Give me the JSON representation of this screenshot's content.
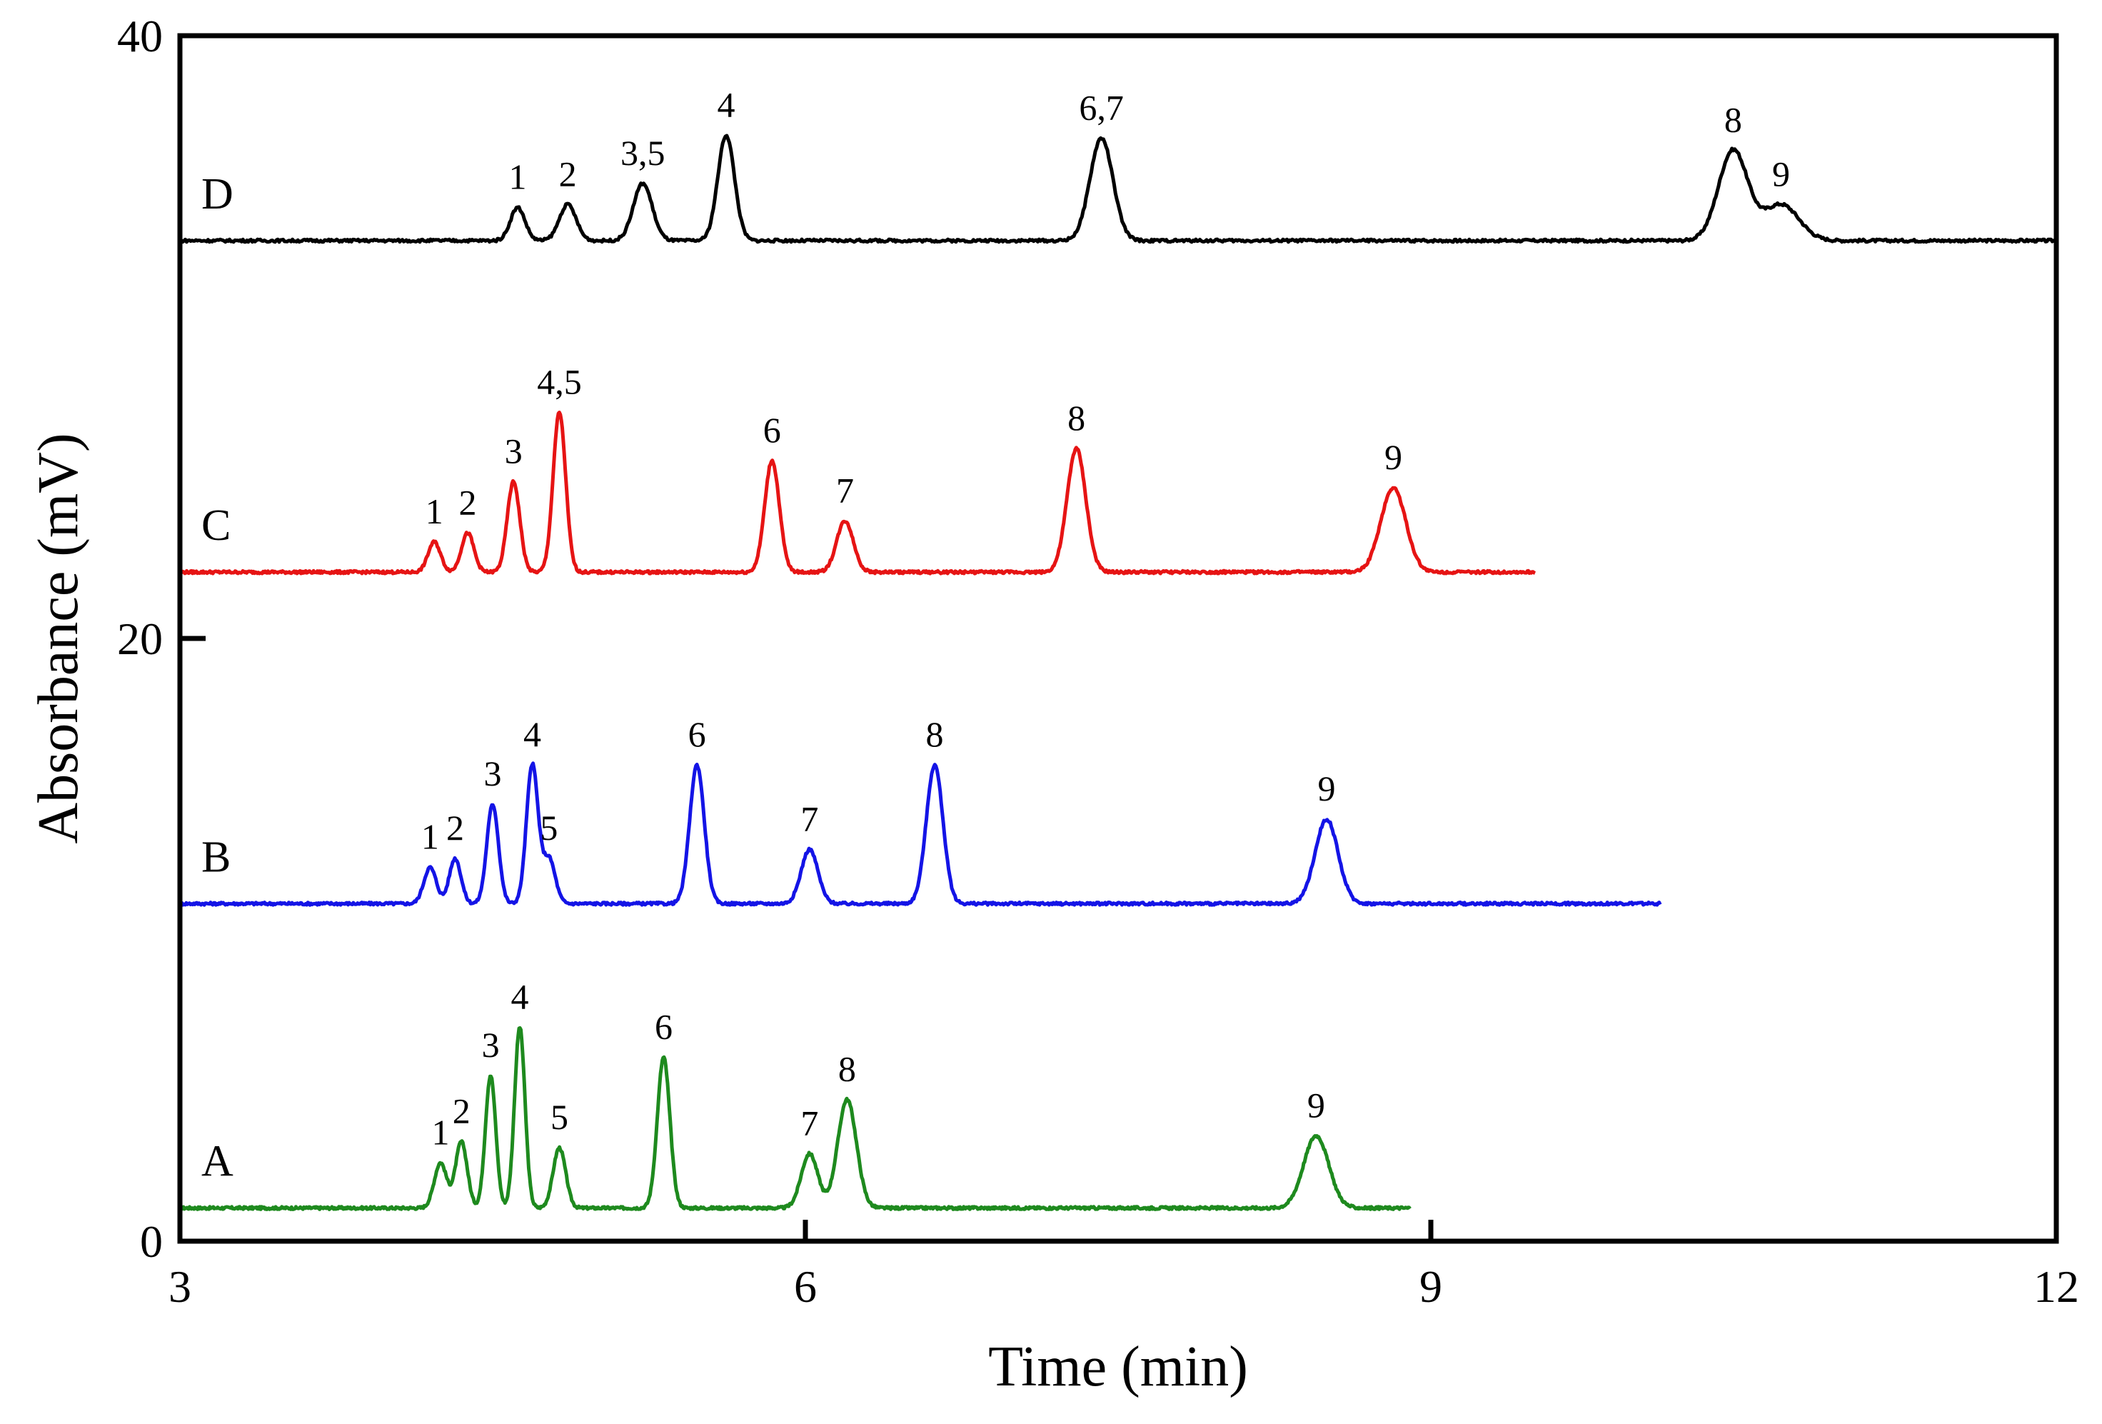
{
  "chart_data": {
    "type": "line",
    "title": "",
    "xlabel": "Time (min)",
    "ylabel": "Absorbance (mV)",
    "xlim": [
      3,
      12
    ],
    "ylim": [
      0,
      40
    ],
    "x_ticks": [
      "3",
      "6",
      "9",
      "12"
    ],
    "y_ticks": [
      "0",
      "20",
      "40"
    ],
    "grid": false,
    "colors": {
      "A": "#1e8a1e",
      "B": "#1414e6",
      "C": "#e61414",
      "D": "#000000"
    },
    "series": [
      {
        "name": "A",
        "color": "#1e8a1e",
        "baseline": 1.1,
        "x_start": 3.0,
        "x_end": 8.9,
        "peaks": [
          {
            "label": "1",
            "x": 4.25,
            "height": 1.5,
            "width": 0.03
          },
          {
            "label": "2",
            "x": 4.35,
            "height": 2.2,
            "width": 0.028
          },
          {
            "label": "3",
            "x": 4.49,
            "height": 4.4,
            "width": 0.025
          },
          {
            "label": "4",
            "x": 4.63,
            "height": 6.0,
            "width": 0.025
          },
          {
            "label": "5",
            "x": 4.82,
            "height": 2.0,
            "width": 0.03
          },
          {
            "label": "6",
            "x": 5.32,
            "height": 5.0,
            "width": 0.03
          },
          {
            "label": "7",
            "x": 6.02,
            "height": 1.8,
            "width": 0.04
          },
          {
            "label": "8",
            "x": 6.2,
            "height": 3.6,
            "width": 0.045
          },
          {
            "label": "9",
            "x": 8.45,
            "height": 2.4,
            "width": 0.06
          }
        ]
      },
      {
        "name": "B",
        "color": "#1414e6",
        "baseline": 11.2,
        "x_start": 3.0,
        "x_end": 10.1,
        "peaks": [
          {
            "label": "1",
            "x": 4.2,
            "height": 1.2,
            "width": 0.03
          },
          {
            "label": "2",
            "x": 4.32,
            "height": 1.5,
            "width": 0.028
          },
          {
            "label": "3",
            "x": 4.5,
            "height": 3.3,
            "width": 0.028
          },
          {
            "label": "4",
            "x": 4.69,
            "height": 4.6,
            "width": 0.028
          },
          {
            "label": "5",
            "x": 4.77,
            "height": 1.5,
            "width": 0.03
          },
          {
            "label": "6",
            "x": 5.48,
            "height": 4.6,
            "width": 0.035
          },
          {
            "label": "7",
            "x": 6.02,
            "height": 1.8,
            "width": 0.04
          },
          {
            "label": "8",
            "x": 6.62,
            "height": 4.6,
            "width": 0.04
          },
          {
            "label": "9",
            "x": 8.5,
            "height": 2.8,
            "width": 0.055
          }
        ]
      },
      {
        "name": "C",
        "color": "#e61414",
        "baseline": 22.2,
        "x_start": 3.0,
        "x_end": 9.5,
        "peaks": [
          {
            "label": "1",
            "x": 4.22,
            "height": 1.0,
            "width": 0.03
          },
          {
            "label": "2",
            "x": 4.38,
            "height": 1.3,
            "width": 0.03
          },
          {
            "label": "3",
            "x": 4.6,
            "height": 3.0,
            "width": 0.03
          },
          {
            "label": "4,5",
            "x": 4.82,
            "height": 5.3,
            "width": 0.03
          },
          {
            "label": "6",
            "x": 5.84,
            "height": 3.7,
            "width": 0.035
          },
          {
            "label": "7",
            "x": 6.19,
            "height": 1.7,
            "width": 0.04
          },
          {
            "label": "8",
            "x": 7.3,
            "height": 4.1,
            "width": 0.045
          },
          {
            "label": "9",
            "x": 8.82,
            "height": 2.8,
            "width": 0.06
          }
        ]
      },
      {
        "name": "D",
        "color": "#000000",
        "baseline": 33.2,
        "x_start": 3.0,
        "x_end": 12.0,
        "peaks": [
          {
            "label": "1",
            "x": 4.62,
            "height": 1.1,
            "width": 0.035
          },
          {
            "label": "2",
            "x": 4.86,
            "height": 1.2,
            "width": 0.04
          },
          {
            "label": "3,5",
            "x": 5.22,
            "height": 1.9,
            "width": 0.045
          },
          {
            "label": "4",
            "x": 5.62,
            "height": 3.5,
            "width": 0.04
          },
          {
            "label": "6,7",
            "x": 7.42,
            "height": 3.4,
            "width": 0.055
          },
          {
            "label": "8",
            "x": 10.45,
            "height": 3.0,
            "width": 0.07
          },
          {
            "label": "9",
            "x": 10.68,
            "height": 1.2,
            "width": 0.085
          }
        ]
      }
    ]
  }
}
